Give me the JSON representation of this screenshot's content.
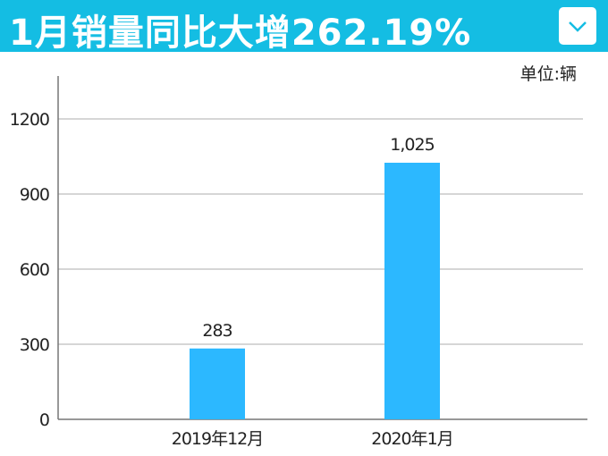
{
  "header": {
    "title": "1月销量同比大增262.19%",
    "dropdown_icon": "chevron-down-icon",
    "background": "#14bde3"
  },
  "chart_data": {
    "type": "bar",
    "title": "1月销量同比大增262.19%",
    "unit_label": "单位:辆",
    "categories": [
      "2019年12月",
      "2020年1月"
    ],
    "values": [
      283,
      1025
    ],
    "data_labels": [
      "283",
      "1,025"
    ],
    "ylim": [
      0,
      1200
    ],
    "yticks": [
      0,
      300,
      600,
      900,
      1200
    ],
    "ytick_labels": [
      "0",
      "300",
      "600",
      "900",
      "1200"
    ],
    "grid": true,
    "bar_color": "#2cb8ff",
    "xlabel": "",
    "ylabel": ""
  }
}
